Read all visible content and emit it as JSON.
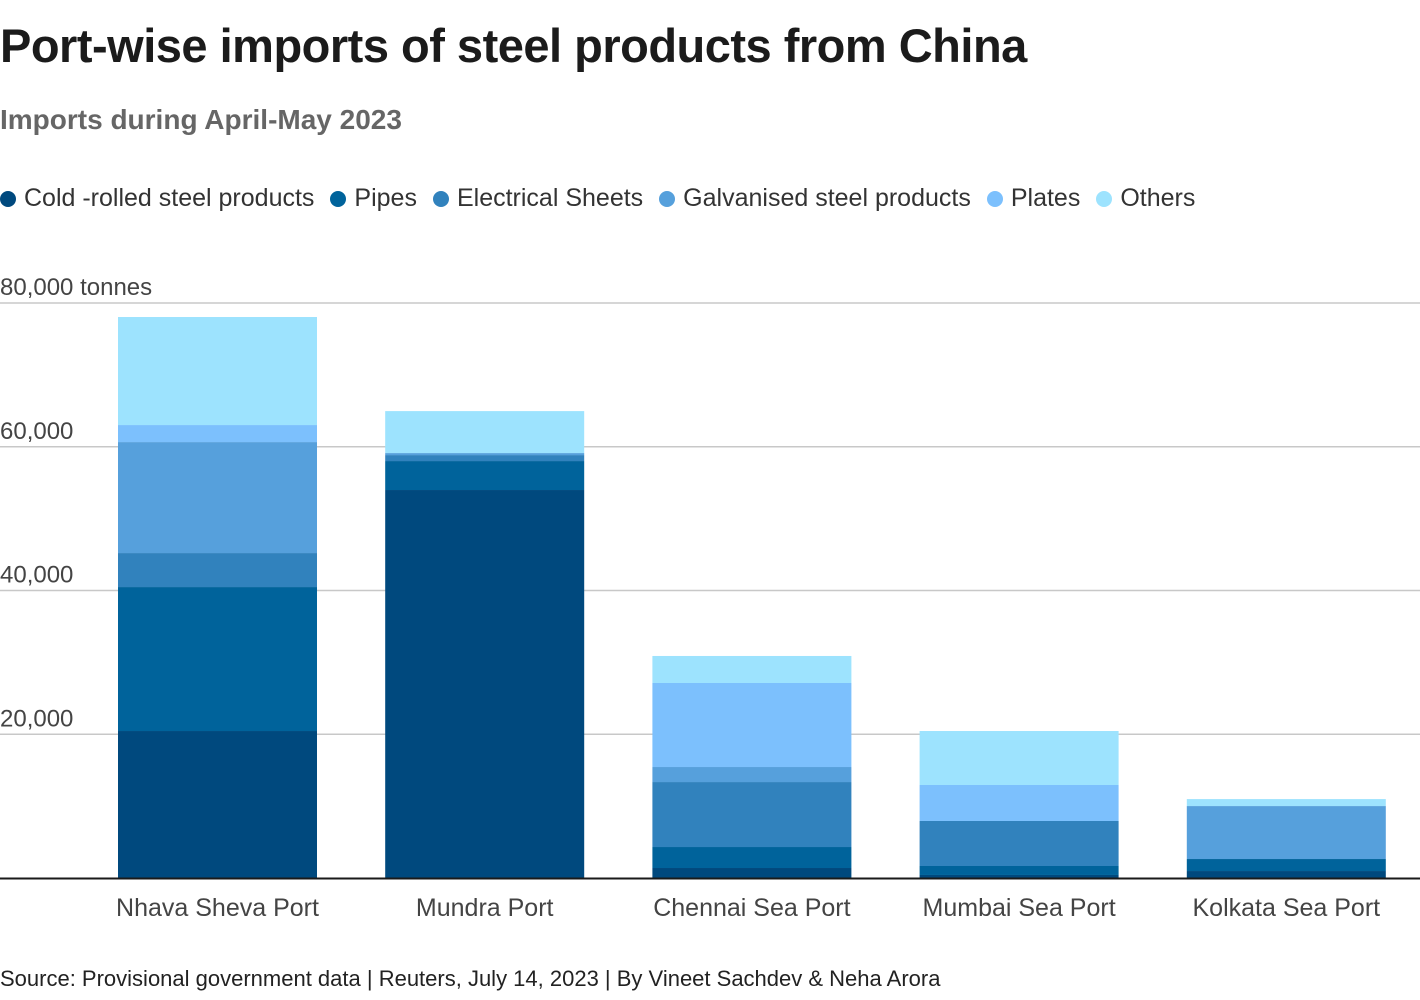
{
  "header": {
    "title": "Port-wise imports of steel products from China",
    "subtitle": "Imports during April-May 2023"
  },
  "footer": {
    "source": "Source: Provisional government data | Reuters, July 14, 2023 | By Vineet Sachdev & Neha Arora"
  },
  "chart_data": {
    "type": "bar",
    "stacked": true,
    "title": "Port-wise imports of steel products from China",
    "subtitle": "Imports during April-May 2023",
    "xlabel": "",
    "ylabel": "tonnes",
    "ylim": [
      0,
      80000
    ],
    "yticks": [
      0,
      20000,
      40000,
      60000,
      80000
    ],
    "ytick_labels": [
      "",
      "20,000",
      "40,000",
      "60,000",
      "80,000 tonnes"
    ],
    "grid": true,
    "legend_position": "top-left",
    "categories": [
      "Nhava Sheva Port",
      "Mundra Port",
      "Chennai Sea Port",
      "Mumbai Sea Port",
      "Kolkata Sea Port"
    ],
    "series": [
      {
        "name": "Cold -rolled steel products",
        "color": "#00497e",
        "values": [
          20450,
          53980,
          1390,
          420,
          970
        ]
      },
      {
        "name": "Pipes",
        "color": "#00639b",
        "values": [
          20030,
          4030,
          2920,
          1250,
          1670
        ]
      },
      {
        "name": "Electrical Sheets",
        "color": "#3182bd",
        "values": [
          4730,
          830,
          9040,
          6260,
          0
        ]
      },
      {
        "name": "Galvanised steel products",
        "color": "#56a0dc",
        "values": [
          15440,
          280,
          2090,
          0,
          7370
        ]
      },
      {
        "name": "Plates",
        "color": "#7cc0fd",
        "values": [
          2370,
          0,
          11690,
          5010,
          0
        ]
      },
      {
        "name": "Others",
        "color": "#9de3fe",
        "values": [
          15030,
          5840,
          3760,
          7510,
          970
        ]
      }
    ]
  }
}
